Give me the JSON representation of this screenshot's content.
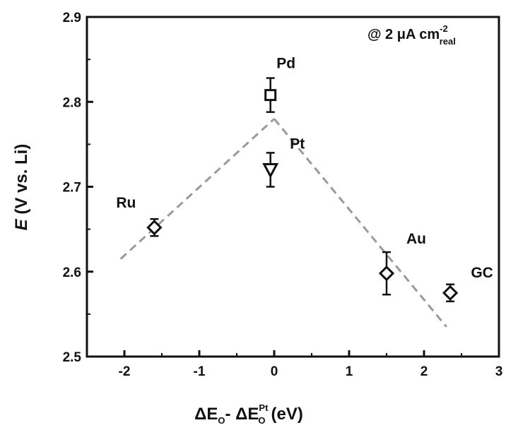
{
  "chart_data": {
    "type": "scatter",
    "title": "",
    "xlabel": {
      "main": "ΔE",
      "sub1": "O",
      "mid": "- ΔE",
      "sup2": "Pt",
      "sub2": "O",
      "unit": "(eV)"
    },
    "ylabel": {
      "italic": "E",
      "rest": "(V vs. Li)"
    },
    "xlim": [
      -2.5,
      3
    ],
    "ylim": [
      2.5,
      2.9
    ],
    "xticks": [
      -2,
      -1,
      0,
      1,
      2,
      3
    ],
    "xtick_labels": [
      "-2",
      "-1",
      "0",
      "1",
      "2",
      "3"
    ],
    "yticks": [
      2.5,
      2.6,
      2.7,
      2.8,
      2.9
    ],
    "ytick_labels": [
      "2.5",
      "2.6",
      "2.7",
      "2.8",
      "2.9"
    ],
    "grid": false,
    "annotation": {
      "prefix": "@ 2 μA cm",
      "sup": "-2",
      "sub": "real"
    },
    "points": [
      {
        "label": "Ru",
        "x": -1.6,
        "y": 2.652,
        "err": 0.01,
        "marker": "diamond"
      },
      {
        "label": "Pd",
        "x": -0.05,
        "y": 2.808,
        "err": 0.02,
        "marker": "square"
      },
      {
        "label": "Pt",
        "x": -0.05,
        "y": 2.72,
        "err": 0.02,
        "marker": "triangle-down"
      },
      {
        "label": "Au",
        "x": 1.5,
        "y": 2.598,
        "err": 0.025,
        "marker": "diamond"
      },
      {
        "label": "GC",
        "x": 2.35,
        "y": 2.575,
        "err": 0.01,
        "marker": "diamond"
      }
    ],
    "trend_lines": [
      {
        "x": [
          -2.05,
          0.0
        ],
        "y": [
          2.615,
          2.78
        ]
      },
      {
        "x": [
          0.0,
          2.3
        ],
        "y": [
          2.78,
          2.535
        ]
      }
    ]
  }
}
